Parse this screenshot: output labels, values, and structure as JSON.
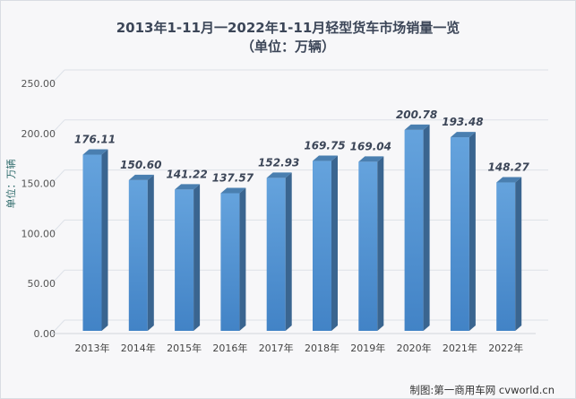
{
  "chart_data": {
    "type": "bar",
    "title": "2013年1-11月一2022年1-11月轻型货车市场销量一览",
    "subtitle": "（单位：万辆）",
    "ylabel": "单位：万辆",
    "xlabel": "",
    "categories": [
      "2013年",
      "2014年",
      "2015年",
      "2016年",
      "2017年",
      "2018年",
      "2019年",
      "2020年",
      "2021年",
      "2022年"
    ],
    "values": [
      176.11,
      150.6,
      141.22,
      137.57,
      152.93,
      169.75,
      169.04,
      200.78,
      193.48,
      148.27
    ],
    "data_labels": [
      "176.11",
      "150.60",
      "141.22",
      "137.57",
      "152.93",
      "169.75",
      "169.04",
      "200.78",
      "193.48",
      "148.27"
    ],
    "ylim": [
      0,
      250
    ],
    "yticks": [
      "0.00",
      "50.00",
      "100.00",
      "150.00",
      "200.00",
      "250.00"
    ],
    "grid": true,
    "style": "3d-column",
    "colors": {
      "bar_front": "#5b9bd5",
      "bar_side": "#3a6590",
      "bar_top": "#4a7fb0"
    }
  },
  "credit": "制图:第一商用车网 cvworld.cn"
}
